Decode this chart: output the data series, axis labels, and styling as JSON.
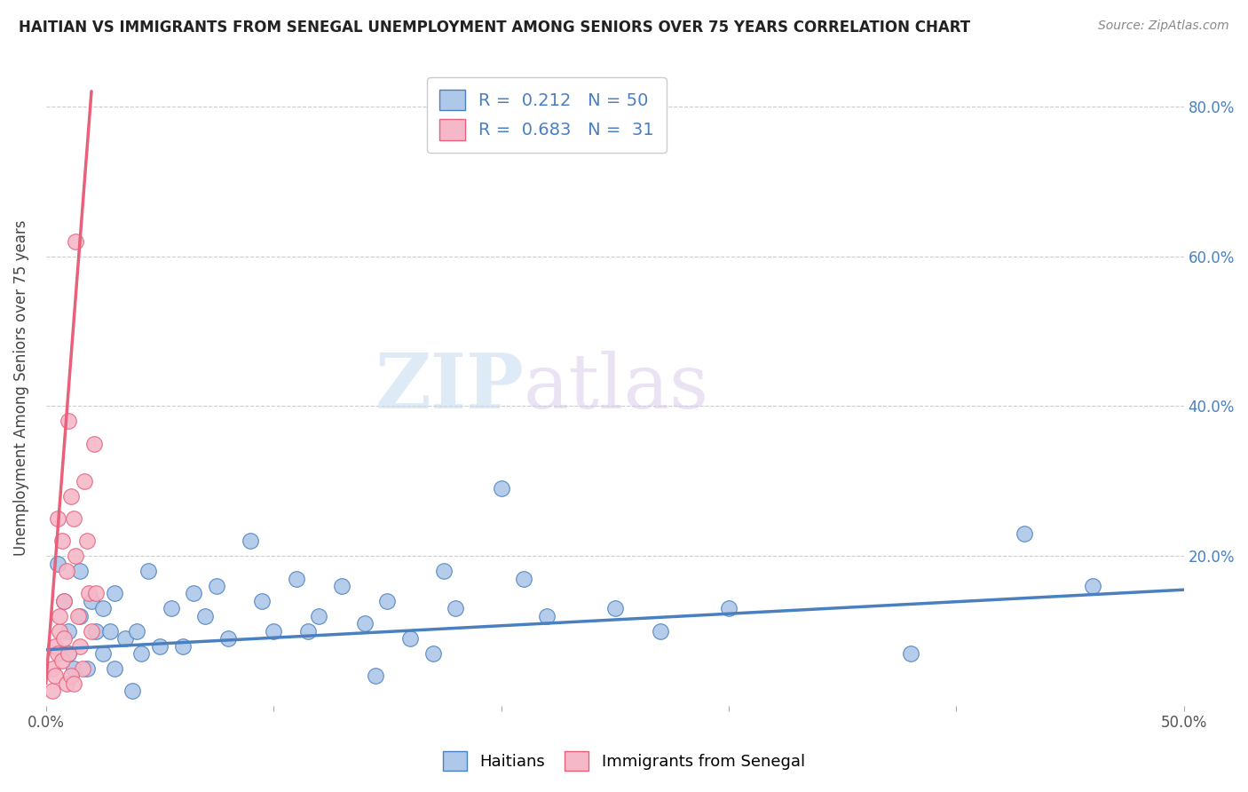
{
  "title": "HAITIAN VS IMMIGRANTS FROM SENEGAL UNEMPLOYMENT AMONG SENIORS OVER 75 YEARS CORRELATION CHART",
  "source": "Source: ZipAtlas.com",
  "ylabel": "Unemployment Among Seniors over 75 years",
  "xlim": [
    0.0,
    0.5
  ],
  "ylim": [
    0.0,
    0.85
  ],
  "xticks": [
    0.0,
    0.1,
    0.2,
    0.3,
    0.4,
    0.5
  ],
  "xticklabels": [
    "0.0%",
    "",
    "",
    "",
    "",
    "50.0%"
  ],
  "yticks": [
    0.0,
    0.2,
    0.4,
    0.6,
    0.8
  ],
  "left_yticklabels": [
    "",
    "",
    "",
    "",
    ""
  ],
  "right_yticklabels": [
    "",
    "20.0%",
    "40.0%",
    "60.0%",
    "80.0%"
  ],
  "blue_R": "0.212",
  "blue_N": "50",
  "pink_R": "0.683",
  "pink_N": "31",
  "blue_color": "#adc8e8",
  "pink_color": "#f5b8c8",
  "blue_line_color": "#4a80c0",
  "pink_line_color": "#e8607a",
  "legend_blue_label": "Haitians",
  "legend_pink_label": "Immigrants from Senegal",
  "watermark_zip": "ZIP",
  "watermark_atlas": "atlas",
  "blue_scatter_x": [
    0.005,
    0.008,
    0.01,
    0.01,
    0.012,
    0.015,
    0.015,
    0.018,
    0.02,
    0.022,
    0.025,
    0.025,
    0.028,
    0.03,
    0.03,
    0.035,
    0.038,
    0.04,
    0.042,
    0.045,
    0.05,
    0.055,
    0.06,
    0.065,
    0.07,
    0.075,
    0.08,
    0.09,
    0.095,
    0.1,
    0.11,
    0.115,
    0.12,
    0.13,
    0.14,
    0.145,
    0.15,
    0.16,
    0.17,
    0.175,
    0.18,
    0.2,
    0.21,
    0.22,
    0.25,
    0.27,
    0.3,
    0.38,
    0.43,
    0.46
  ],
  "blue_scatter_y": [
    0.19,
    0.14,
    0.1,
    0.07,
    0.05,
    0.18,
    0.12,
    0.05,
    0.14,
    0.1,
    0.07,
    0.13,
    0.1,
    0.05,
    0.15,
    0.09,
    0.02,
    0.1,
    0.07,
    0.18,
    0.08,
    0.13,
    0.08,
    0.15,
    0.12,
    0.16,
    0.09,
    0.22,
    0.14,
    0.1,
    0.17,
    0.1,
    0.12,
    0.16,
    0.11,
    0.04,
    0.14,
    0.09,
    0.07,
    0.18,
    0.13,
    0.29,
    0.17,
    0.12,
    0.13,
    0.1,
    0.13,
    0.07,
    0.23,
    0.16
  ],
  "pink_scatter_x": [
    0.003,
    0.004,
    0.005,
    0.006,
    0.007,
    0.008,
    0.009,
    0.01,
    0.011,
    0.012,
    0.013,
    0.014,
    0.015,
    0.016,
    0.017,
    0.018,
    0.019,
    0.02,
    0.021,
    0.022,
    0.003,
    0.004,
    0.005,
    0.006,
    0.007,
    0.008,
    0.009,
    0.01,
    0.011,
    0.012,
    0.013
  ],
  "pink_scatter_y": [
    0.05,
    0.08,
    0.25,
    0.1,
    0.22,
    0.14,
    0.18,
    0.38,
    0.28,
    0.25,
    0.2,
    0.12,
    0.08,
    0.05,
    0.3,
    0.22,
    0.15,
    0.1,
    0.35,
    0.15,
    0.02,
    0.04,
    0.07,
    0.12,
    0.06,
    0.09,
    0.03,
    0.07,
    0.04,
    0.03,
    0.62
  ],
  "blue_trend_x": [
    0.0,
    0.5
  ],
  "blue_trend_y": [
    0.075,
    0.155
  ],
  "pink_trend_x": [
    0.0,
    0.02
  ],
  "pink_trend_y": [
    0.03,
    0.82
  ]
}
